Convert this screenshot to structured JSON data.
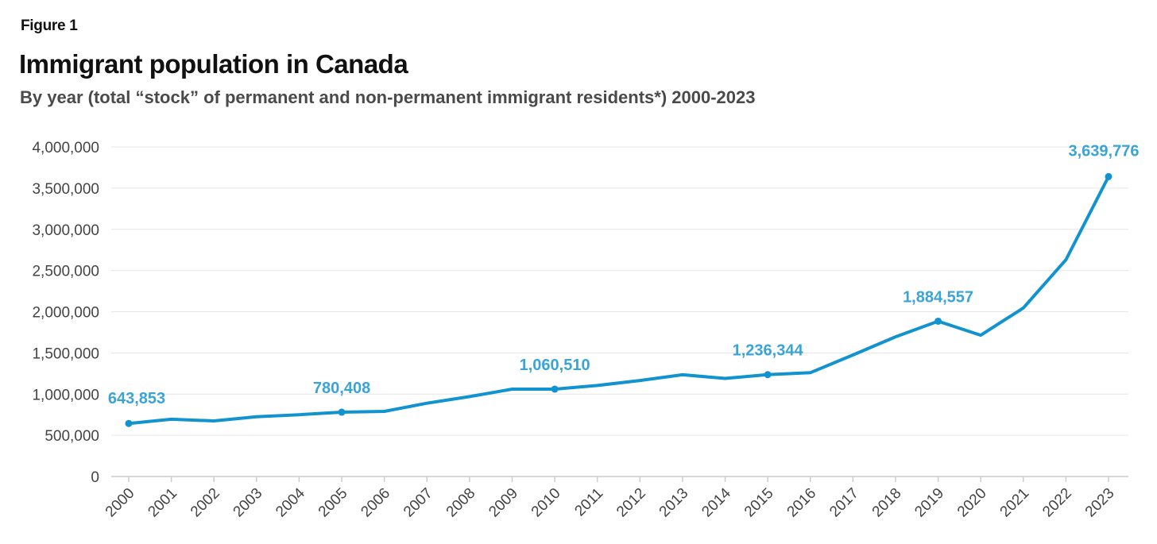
{
  "figure_label": "Figure 1",
  "title": "Immigrant population in Canada",
  "subtitle": "By year (total “stock” of permanent and non-permanent immigrant residents*) 2000-2023",
  "colors": {
    "line": "#1193cf",
    "label": "#3aa4d6",
    "grid": "#e6e6e6",
    "axis": "#cccccc"
  },
  "chart_data": {
    "type": "line",
    "title": "Immigrant population in Canada",
    "subtitle": "By year (total “stock” of permanent and non-permanent immigrant residents*) 2000-2023",
    "xlabel": "",
    "ylabel": "",
    "ylim": [
      0,
      4000000
    ],
    "grid": true,
    "y_ticks": [
      0,
      500000,
      1000000,
      1500000,
      2000000,
      2500000,
      3000000,
      3500000,
      4000000
    ],
    "y_tick_labels": [
      "0",
      "500,000",
      "1,000,000",
      "1,500,000",
      "2,000,000",
      "2,500,000",
      "3,000,000",
      "3,500,000",
      "4,000,000"
    ],
    "categories": [
      "2000",
      "2001",
      "2002",
      "2003",
      "2004",
      "2005",
      "2006",
      "2007",
      "2008",
      "2009",
      "2010",
      "2011",
      "2012",
      "2013",
      "2014",
      "2015",
      "2016",
      "2017",
      "2018",
      "2019",
      "2020",
      "2021",
      "2022",
      "2023"
    ],
    "values": [
      643853,
      695000,
      675000,
      725000,
      750000,
      780408,
      790000,
      890000,
      970000,
      1060000,
      1060510,
      1105000,
      1165000,
      1235000,
      1190000,
      1236344,
      1260000,
      1475000,
      1695000,
      1884557,
      1715000,
      2045000,
      2630000,
      3639776
    ],
    "marked_points": [
      {
        "category": "2000",
        "value": 643853,
        "label": "643,853"
      },
      {
        "category": "2005",
        "value": 780408,
        "label": "780,408"
      },
      {
        "category": "2010",
        "value": 1060510,
        "label": "1,060,510"
      },
      {
        "category": "2015",
        "value": 1236344,
        "label": "1,236,344"
      },
      {
        "category": "2019",
        "value": 1884557,
        "label": "1,884,557"
      },
      {
        "category": "2023",
        "value": 3639776,
        "label": "3,639,776"
      }
    ]
  }
}
